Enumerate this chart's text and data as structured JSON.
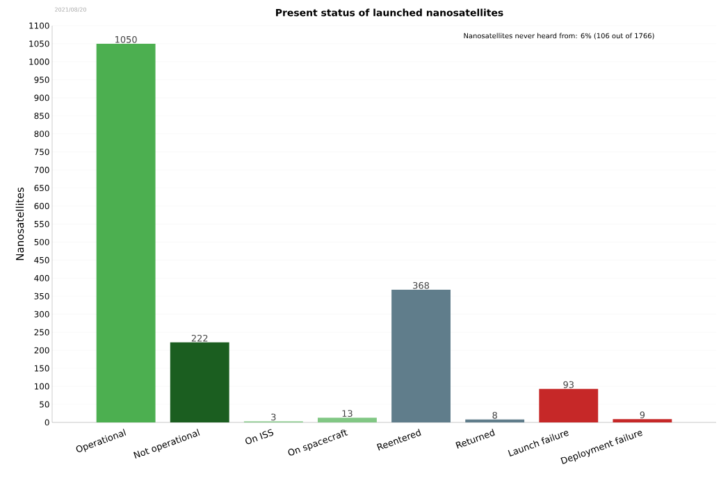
{
  "chart_data": {
    "type": "bar",
    "title": "Present status of launched nanosatellites",
    "ylabel": "Nanosatellites",
    "categories": [
      "Operational",
      "Not operational",
      "On ISS",
      "On spacecraft",
      "Reentered",
      "Returned",
      "Launch failure",
      "Deployment failure"
    ],
    "values": [
      1050,
      222,
      3,
      13,
      368,
      8,
      93,
      9
    ],
    "colors": [
      "#4caf50",
      "#1b5e20",
      "#81c784",
      "#81c784",
      "#607d8b",
      "#607d8b",
      "#c62828",
      "#c62828"
    ],
    "ylim": [
      0,
      1100
    ],
    "yticks": [
      0,
      50,
      100,
      150,
      200,
      250,
      300,
      350,
      400,
      450,
      500,
      550,
      600,
      650,
      700,
      750,
      800,
      850,
      900,
      950,
      1000,
      1050,
      1100
    ],
    "grid": "y",
    "data_labels": true,
    "annotations": [
      "2021/08/20",
      "Nanosatellites never heard from: 6% (106 out of 1766)"
    ]
  }
}
